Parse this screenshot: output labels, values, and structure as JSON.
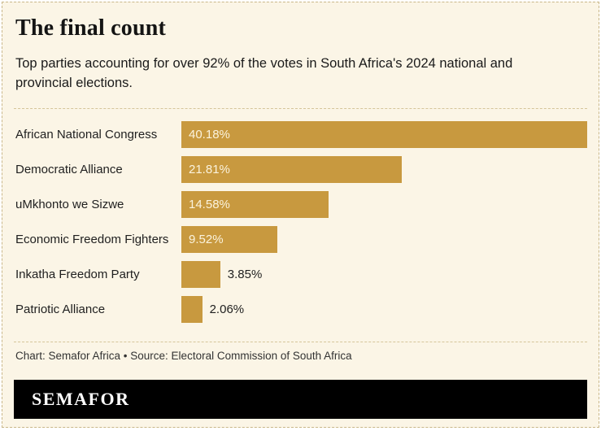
{
  "header": {
    "title": "The final count",
    "subtitle": "Top parties accounting for over 92% of the votes in South Africa's 2024 national and provincial elections."
  },
  "chart_data": {
    "type": "bar",
    "orientation": "horizontal",
    "title": "The final count",
    "categories": [
      "African National Congress",
      "Democratic Alliance",
      "uMkhonto we Sizwe",
      "Economic Freedom Fighters",
      "Inkatha Freedom Party",
      "Patriotic Alliance"
    ],
    "values": [
      40.18,
      21.81,
      14.58,
      9.52,
      3.85,
      2.06
    ],
    "value_labels": [
      "40.18%",
      "21.81%",
      "14.58%",
      "9.52%",
      "3.85%",
      "2.06%"
    ],
    "xlim": [
      0,
      40.18
    ],
    "grid": false,
    "legend": "none",
    "bar_color": "#c8993f"
  },
  "footer": {
    "source": "Chart: Semafor Africa • Source: Electoral Commission of South Africa",
    "logo": "SEMAFOR"
  },
  "colors": {
    "background": "#fbf5e6",
    "bar": "#c8993f",
    "bar_value_text": "#fbf3dd",
    "text": "#1a1a1a",
    "dashed_line": "#d5c59a",
    "logo_bar": "#000000"
  }
}
